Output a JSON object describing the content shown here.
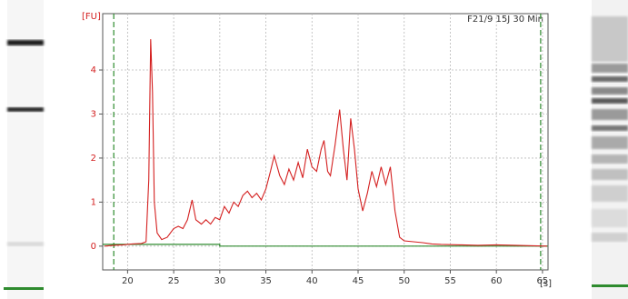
{
  "chart_data": {
    "type": "line",
    "title": "F21/9 15J 30 Min",
    "y_label": "[FU]",
    "x_label": "[s]",
    "xlim": [
      17.3,
      65.6
    ],
    "ylim": [
      -0.54,
      5.28
    ],
    "xticks": [
      20,
      25,
      30,
      35,
      40,
      45,
      50,
      55,
      60,
      65
    ],
    "yticks": [
      0,
      1,
      2,
      3,
      4
    ],
    "grid": true,
    "markers_x": [
      18.5,
      64.8
    ],
    "marker_color": "#2e8b2e",
    "baseline": {
      "color": "#2e8b2e",
      "x": [
        17.3,
        30,
        30,
        65.6
      ],
      "values": [
        0.04,
        0.04,
        0,
        0
      ]
    },
    "series": [
      {
        "name": "F21/9 15J 30 Min",
        "color": "#d42020",
        "x": [
          17.5,
          18.5,
          19.5,
          20.5,
          21.5,
          22.0,
          22.3,
          22.5,
          22.7,
          22.9,
          23.2,
          23.7,
          24.3,
          25,
          25.5,
          26,
          26.5,
          27,
          27.4,
          28,
          28.5,
          29,
          29.5,
          30,
          30.5,
          31,
          31.5,
          32,
          32.5,
          33,
          33.5,
          34,
          34.5,
          35,
          35.5,
          35.9,
          36.5,
          37,
          37.5,
          38,
          38.5,
          39,
          39.5,
          40,
          40.5,
          41,
          41.3,
          41.7,
          42,
          42.5,
          43,
          43.4,
          43.8,
          44.2,
          44.6,
          45,
          45.5,
          46,
          46.5,
          47,
          47.5,
          48,
          48.5,
          49,
          49.5,
          50,
          51,
          52,
          53,
          54,
          56,
          58,
          60,
          62,
          64,
          65.5
        ],
        "values": [
          0,
          0.02,
          0.03,
          0.05,
          0.06,
          0.1,
          1.5,
          4.7,
          3.5,
          1.0,
          0.3,
          0.15,
          0.2,
          0.4,
          0.45,
          0.4,
          0.6,
          1.05,
          0.6,
          0.5,
          0.6,
          0.5,
          0.65,
          0.6,
          0.9,
          0.75,
          1.0,
          0.9,
          1.15,
          1.25,
          1.1,
          1.2,
          1.05,
          1.3,
          1.7,
          2.05,
          1.6,
          1.4,
          1.75,
          1.5,
          1.9,
          1.55,
          2.2,
          1.8,
          1.7,
          2.2,
          2.4,
          1.7,
          1.6,
          2.3,
          3.1,
          2.2,
          1.5,
          2.9,
          2.2,
          1.3,
          0.8,
          1.2,
          1.7,
          1.35,
          1.8,
          1.4,
          1.8,
          0.8,
          0.2,
          0.12,
          0.1,
          0.08,
          0.05,
          0.04,
          0.03,
          0.02,
          0.03,
          0.02,
          0.01,
          0
        ]
      }
    ]
  }
}
